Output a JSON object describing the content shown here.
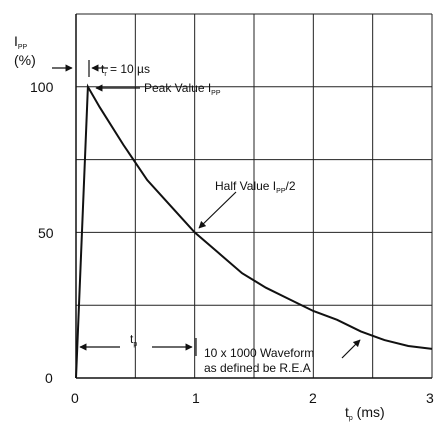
{
  "chart_data": {
    "type": "line",
    "xlabel": {
      "main": "t",
      "sub": "p",
      "unit": " (ms)"
    },
    "ylabel": {
      "main": "I",
      "sub": "PP",
      "unit": "(%)"
    },
    "xlim": [
      0,
      3
    ],
    "ylim": [
      0,
      125
    ],
    "x_ticks": [
      "0",
      "1",
      "2",
      "3"
    ],
    "y_ticks": [
      "0",
      "50",
      "100"
    ],
    "grid": true,
    "series": [
      {
        "x": [
          0,
          0.01,
          0.1,
          0.2,
          0.4,
          0.6,
          0.8,
          1.0,
          1.2,
          1.4,
          1.6,
          1.8,
          2.0,
          2.2,
          2.4,
          2.6,
          2.8,
          3.0
        ],
        "y": [
          0,
          10,
          100,
          93,
          80,
          68,
          59,
          50,
          43,
          36,
          31,
          27,
          23,
          20,
          16,
          13,
          11,
          10
        ]
      }
    ],
    "annotations": {
      "rise_time": {
        "main": "t",
        "sub": "r",
        "rest": " = 10 µs"
      },
      "peak": {
        "main": "Peak Value I",
        "sub": "PP"
      },
      "half": {
        "main": "Half Value I",
        "sub": "PP",
        "rest": "/2"
      },
      "tp": {
        "main": "t",
        "sub": "p"
      },
      "waveform_line1": "10 x 1000 Waveform",
      "waveform_line2": "as defined be R.E.A"
    }
  }
}
